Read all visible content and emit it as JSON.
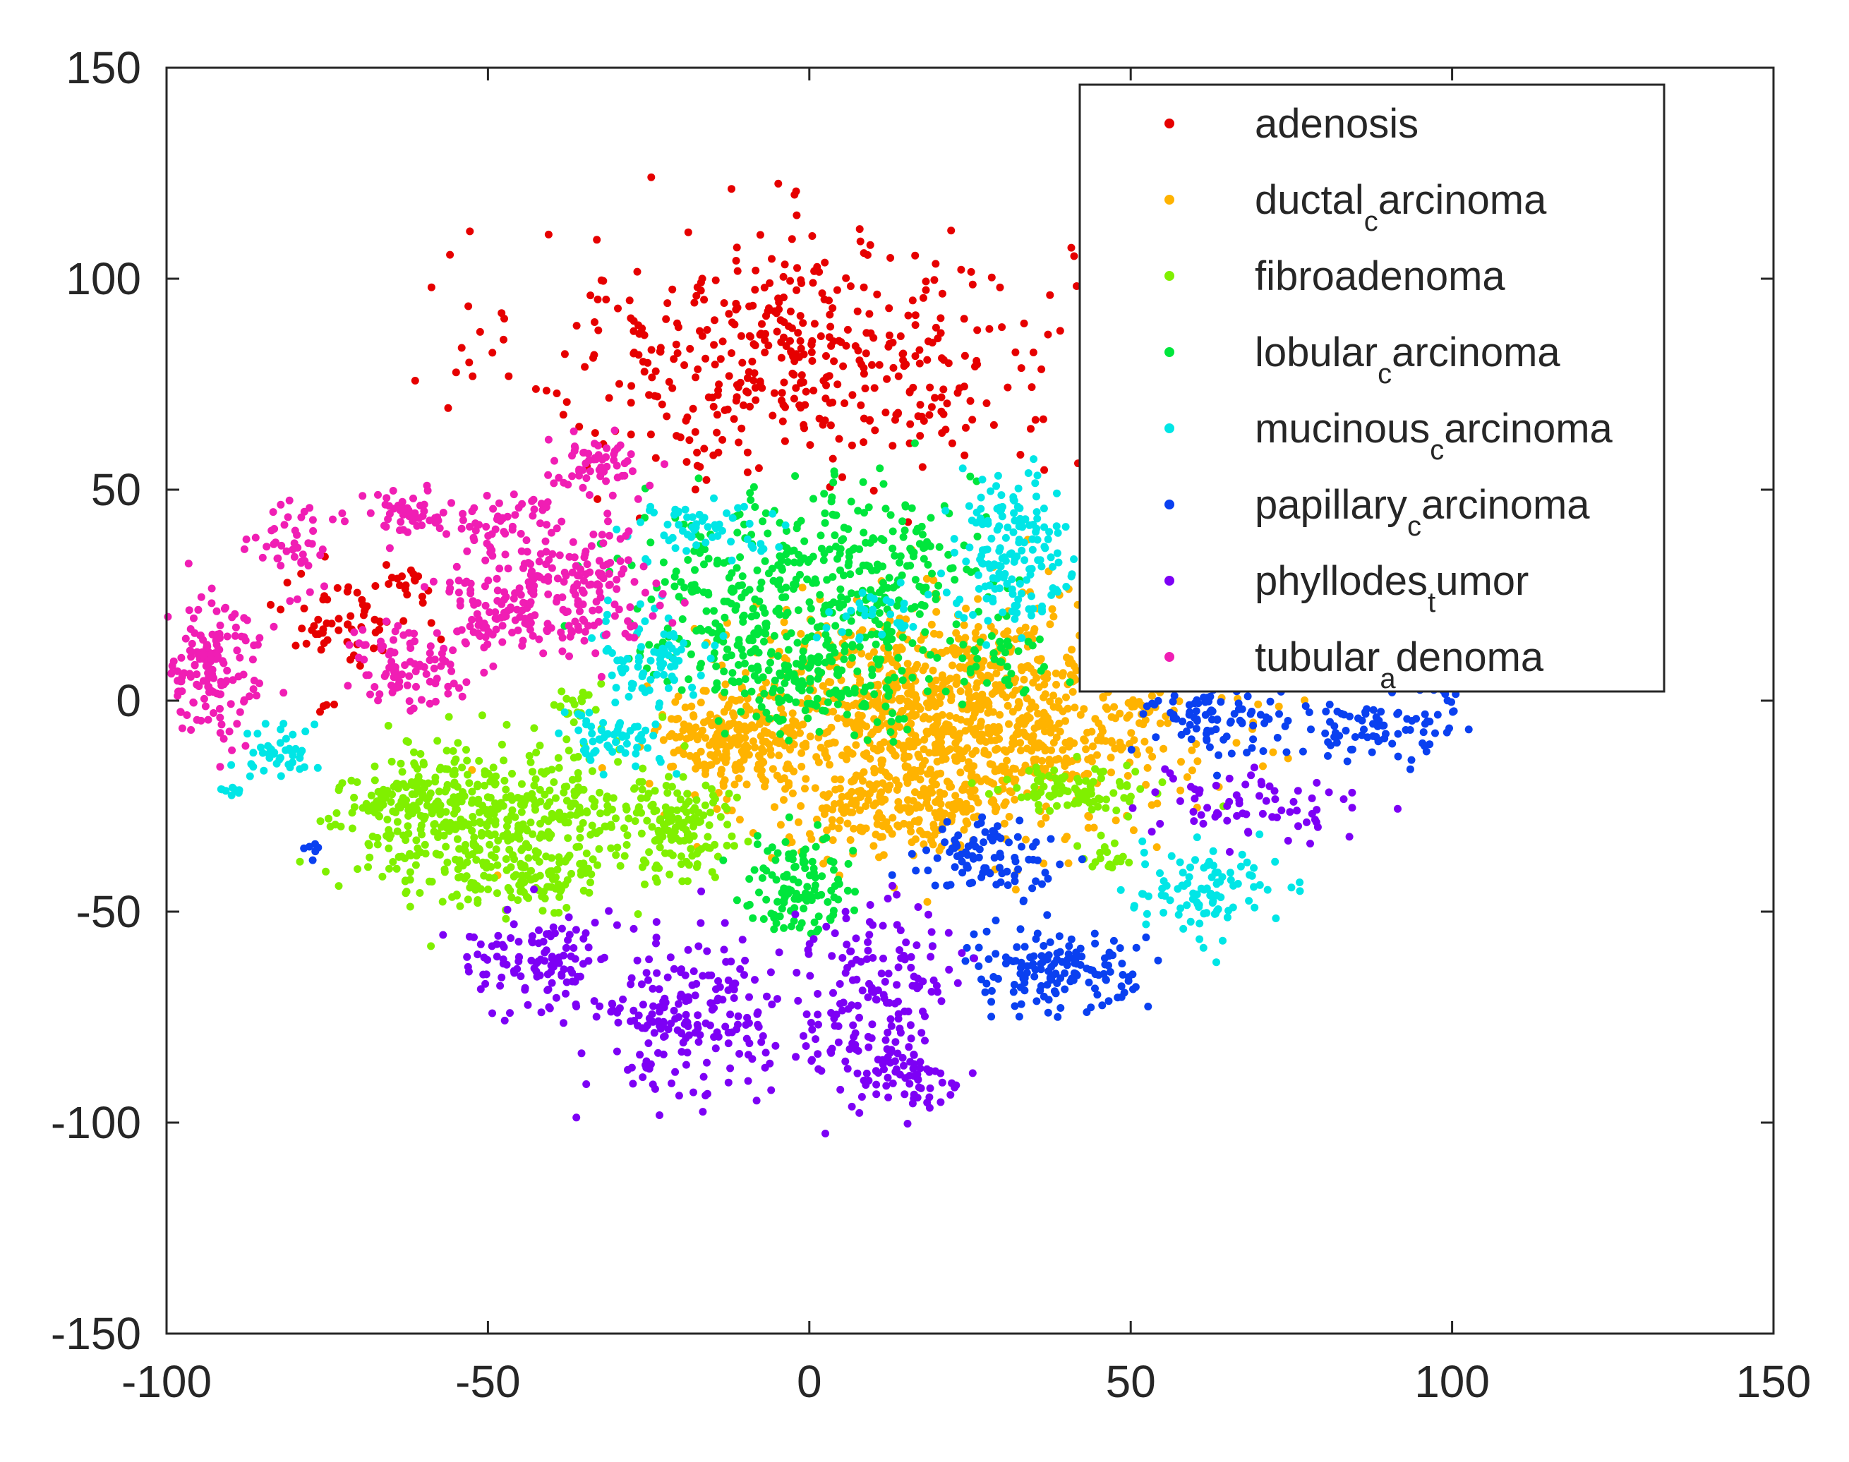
{
  "chart_data": {
    "type": "scatter",
    "title": "",
    "xlabel": "",
    "ylabel": "",
    "xlim": [
      -100,
      150
    ],
    "ylim": [
      -150,
      150
    ],
    "x_ticks": [
      -100,
      -50,
      0,
      50,
      100,
      150
    ],
    "y_ticks": [
      -150,
      -100,
      -50,
      0,
      50,
      100,
      150
    ],
    "x_tick_labels": [
      "-100",
      "-50",
      "0",
      "50",
      "100",
      "150"
    ],
    "y_tick_labels": [
      "-150",
      "-100",
      "-50",
      "0",
      "50",
      "100",
      "150"
    ],
    "grid": false,
    "legend_position": "top-right",
    "series": [
      {
        "name": "adenosis",
        "label_main": "adenosis",
        "label_sub": "",
        "label_tail": "",
        "color": "#e60000",
        "clusters": [
          {
            "cx": -2,
            "cy": 82,
            "sx": 21,
            "sy": 15,
            "n": 460
          },
          {
            "cx": -72,
            "cy": 19,
            "sx": 5,
            "sy": 5,
            "n": 60
          },
          {
            "cx": -63,
            "cy": 27,
            "sx": 3,
            "sy": 3,
            "n": 18
          },
          {
            "cx": -75,
            "cy": -1,
            "sx": 1,
            "sy": 1,
            "n": 4
          }
        ]
      },
      {
        "name": "ductal_carcinoma",
        "label_main": "ductal",
        "label_sub": "c",
        "label_tail": "arcinoma",
        "color": "#ffb300",
        "clusters": [
          {
            "cx": 22,
            "cy": -5,
            "sx": 18,
            "sy": 13,
            "n": 1200
          },
          {
            "cx": -13,
            "cy": -10,
            "sx": 6,
            "sy": 6,
            "n": 160
          },
          {
            "cx": 12,
            "cy": -27,
            "sx": 7,
            "sy": 5,
            "n": 120
          }
        ]
      },
      {
        "name": "fibroadenoma",
        "label_main": "fibroadenoma",
        "label_sub": "",
        "label_tail": "",
        "color": "#80f000",
        "clusters": [
          {
            "cx": -55,
            "cy": -29,
            "sx": 8,
            "sy": 9,
            "n": 290
          },
          {
            "cx": -38,
            "cy": -26,
            "sx": 8,
            "sy": 8,
            "n": 200
          },
          {
            "cx": -43,
            "cy": -43,
            "sx": 6,
            "sy": 4,
            "n": 80
          },
          {
            "cx": -65,
            "cy": -23,
            "sx": 4,
            "sy": 4,
            "n": 70
          },
          {
            "cx": -20,
            "cy": -30,
            "sx": 4,
            "sy": 7,
            "n": 120
          },
          {
            "cx": -37,
            "cy": 0,
            "sx": 2,
            "sy": 2,
            "n": 20
          },
          {
            "cx": 42,
            "cy": -21,
            "sx": 6,
            "sy": 3,
            "n": 90
          },
          {
            "cx": 46,
            "cy": -37,
            "sx": 2,
            "sy": 2,
            "n": 18
          }
        ]
      },
      {
        "name": "lobular_carcinoma",
        "label_main": "lobular",
        "label_sub": "c",
        "label_tail": "arcinoma",
        "color": "#00e63c",
        "clusters": [
          {
            "cx": 0,
            "cy": 28,
            "sx": 13,
            "sy": 11,
            "n": 420
          },
          {
            "cx": 0,
            "cy": 5,
            "sx": 10,
            "sy": 6,
            "n": 180
          },
          {
            "cx": -2,
            "cy": -43,
            "sx": 4,
            "sy": 6,
            "n": 120
          },
          {
            "cx": 30,
            "cy": 10,
            "sx": 5,
            "sy": 4,
            "n": 40
          }
        ]
      },
      {
        "name": "mucinous_carcinoma",
        "label_main": "mucinous",
        "label_sub": "c",
        "label_tail": "arcinoma",
        "color": "#00e6e6",
        "clusters": [
          {
            "cx": 32,
            "cy": 36,
            "sx": 5,
            "sy": 9,
            "n": 170
          },
          {
            "cx": -16,
            "cy": 41,
            "sx": 6,
            "sy": 3,
            "n": 60
          },
          {
            "cx": -25,
            "cy": 10,
            "sx": 5,
            "sy": 5,
            "n": 80
          },
          {
            "cx": -30,
            "cy": -9,
            "sx": 4,
            "sy": 4,
            "n": 60
          },
          {
            "cx": -82,
            "cy": -12,
            "sx": 4,
            "sy": 3,
            "n": 45
          },
          {
            "cx": -90,
            "cy": -21,
            "sx": 1,
            "sy": 1,
            "n": 8
          },
          {
            "cx": 61,
            "cy": -45,
            "sx": 6,
            "sy": 5,
            "n": 100
          },
          {
            "cx": 10,
            "cy": 20,
            "sx": 4,
            "sy": 4,
            "n": 30
          }
        ]
      },
      {
        "name": "papillary_carcinoma",
        "label_main": "papillary",
        "label_sub": "c",
        "label_tail": "arcinoma",
        "color": "#0a40f0",
        "clusters": [
          {
            "cx": 27,
            "cy": -38,
            "sx": 5,
            "sy": 4,
            "n": 90
          },
          {
            "cx": 38,
            "cy": -63,
            "sx": 7,
            "sy": 5,
            "n": 150
          },
          {
            "cx": 64,
            "cy": -3,
            "sx": 6,
            "sy": 5,
            "n": 100
          },
          {
            "cx": 88,
            "cy": -8,
            "sx": 6,
            "sy": 4,
            "n": 70
          },
          {
            "cx": 99,
            "cy": -2,
            "sx": 2,
            "sy": 3,
            "n": 14
          },
          {
            "cx": -78,
            "cy": -36,
            "sx": 1,
            "sy": 1,
            "n": 6
          }
        ]
      },
      {
        "name": "phyllodes_tumor",
        "label_main": "phyllodes",
        "label_sub": "t",
        "label_tail": "umor",
        "color": "#7d00f5",
        "clusters": [
          {
            "cx": -42,
            "cy": -62,
            "sx": 6,
            "sy": 6,
            "n": 120
          },
          {
            "cx": -18,
            "cy": -75,
            "sx": 7,
            "sy": 10,
            "n": 200
          },
          {
            "cx": 10,
            "cy": -72,
            "sx": 6,
            "sy": 12,
            "n": 180
          },
          {
            "cx": 16,
            "cy": -90,
            "sx": 4,
            "sy": 4,
            "n": 50
          },
          {
            "cx": 68,
            "cy": -24,
            "sx": 8,
            "sy": 4,
            "n": 70
          }
        ]
      },
      {
        "name": "tubular_adenoma",
        "label_main": "tubular",
        "label_sub": "a",
        "label_tail": "denoma",
        "color": "#f01eb4",
        "clusters": [
          {
            "cx": -93,
            "cy": 8,
            "sx": 4,
            "sy": 9,
            "n": 160
          },
          {
            "cx": -80,
            "cy": 37,
            "sx": 3,
            "sy": 6,
            "n": 45
          },
          {
            "cx": -62,
            "cy": 44,
            "sx": 4,
            "sy": 3,
            "n": 50
          },
          {
            "cx": -48,
            "cy": 42,
            "sx": 4,
            "sy": 4,
            "n": 50
          },
          {
            "cx": -34,
            "cy": 55,
            "sx": 4,
            "sy": 4,
            "n": 60
          },
          {
            "cx": -62,
            "cy": 8,
            "sx": 5,
            "sy": 5,
            "n": 90
          },
          {
            "cx": -49,
            "cy": 20,
            "sx": 5,
            "sy": 5,
            "n": 90
          },
          {
            "cx": -37,
            "cy": 26,
            "sx": 6,
            "sy": 8,
            "n": 160
          }
        ]
      }
    ]
  }
}
